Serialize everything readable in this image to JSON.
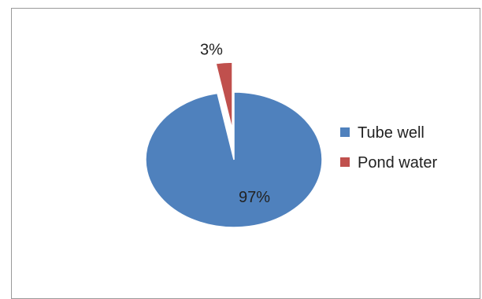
{
  "chart_data": {
    "type": "pie",
    "categories": [
      "Tube well",
      "Pond water"
    ],
    "values": [
      97,
      3
    ],
    "data_labels": [
      "97%",
      "3%"
    ],
    "colors": [
      "#4f81bd",
      "#c0504d"
    ],
    "exploded": [
      false,
      true
    ],
    "legend_placement": "right",
    "title": ""
  }
}
